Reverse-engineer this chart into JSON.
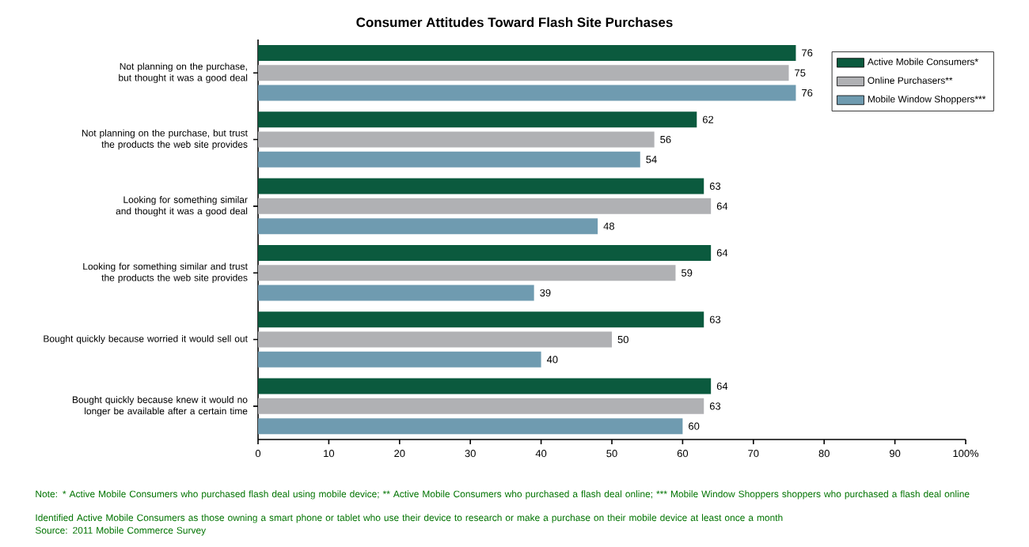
{
  "chart_data": {
    "type": "bar",
    "orientation": "horizontal",
    "title": "Consumer Attitudes Toward Flash Site Purchases",
    "categories": [
      "Not planning on the purchase, but thought it was a good deal",
      "Not planning on the purchase, but trust the products the web site provides",
      "Looking for something similar and thought it was a good deal",
      "Looking for something similar and trust the products the web site provides",
      "Bought quickly because worried it would sell out",
      "Bought quickly because knew it would no longer be available after a certain time"
    ],
    "series": [
      {
        "name": "Active Mobile Consumers*",
        "color": "#0b5a3e",
        "values": [
          76,
          62,
          63,
          64,
          63,
          64
        ]
      },
      {
        "name": "Online Purchasers**",
        "color": "#b0b1b4",
        "values": [
          75,
          56,
          64,
          59,
          50,
          63
        ]
      },
      {
        "name": "Mobile Window Shoppers***",
        "color": "#6f9bb0",
        "values": [
          76,
          54,
          48,
          39,
          40,
          60
        ]
      }
    ],
    "xlim": [
      0,
      100
    ],
    "xticks": [
      0,
      10,
      20,
      30,
      40,
      50,
      60,
      70,
      80,
      90,
      {
        "value": 100,
        "label": "100%"
      }
    ],
    "data_labels": true,
    "legend": "top right",
    "grid": false,
    "annotations": [
      "Note: * Active Mobile Consumers who purchased flash deal using mobile device; ** Active Mobile Consumers who purchased a flash deal online; *** Mobile Window Shoppers shoppers who purchased a flash deal online",
      "Identified Active Mobile Consumers as those owning a smart phone or tablet who use their device to research or make a purchase on their mobile device at least once a month",
      "Source: 2011 Mobile Commerce Survey"
    ]
  }
}
